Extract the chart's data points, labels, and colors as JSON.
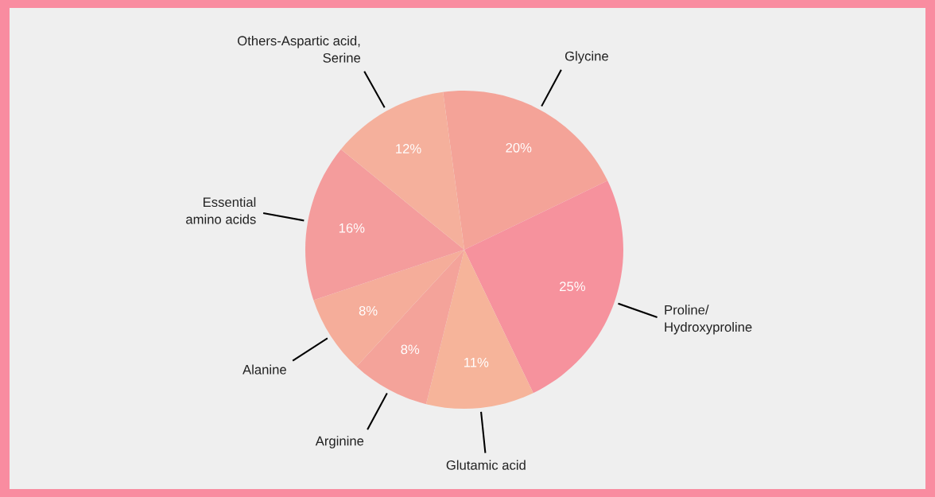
{
  "chart_data": {
    "type": "pie",
    "categories": [
      "Glycine",
      "Proline/\nHydroxyproline",
      "Glutamic acid",
      "Arginine",
      "Alanine",
      "Essential\namino acids",
      "Others-Aspartic acid,\nSerine"
    ],
    "values": [
      20,
      25,
      11,
      8,
      8,
      16,
      12
    ],
    "colors": [
      "#f4a398",
      "#f6929d",
      "#f6b49a",
      "#f4a39a",
      "#f5ad9a",
      "#f49c9c",
      "#f5b09c"
    ],
    "value_labels": [
      "20%",
      "25%",
      "11%",
      "8%",
      "8%",
      "16%",
      "12%"
    ],
    "legend": false
  }
}
